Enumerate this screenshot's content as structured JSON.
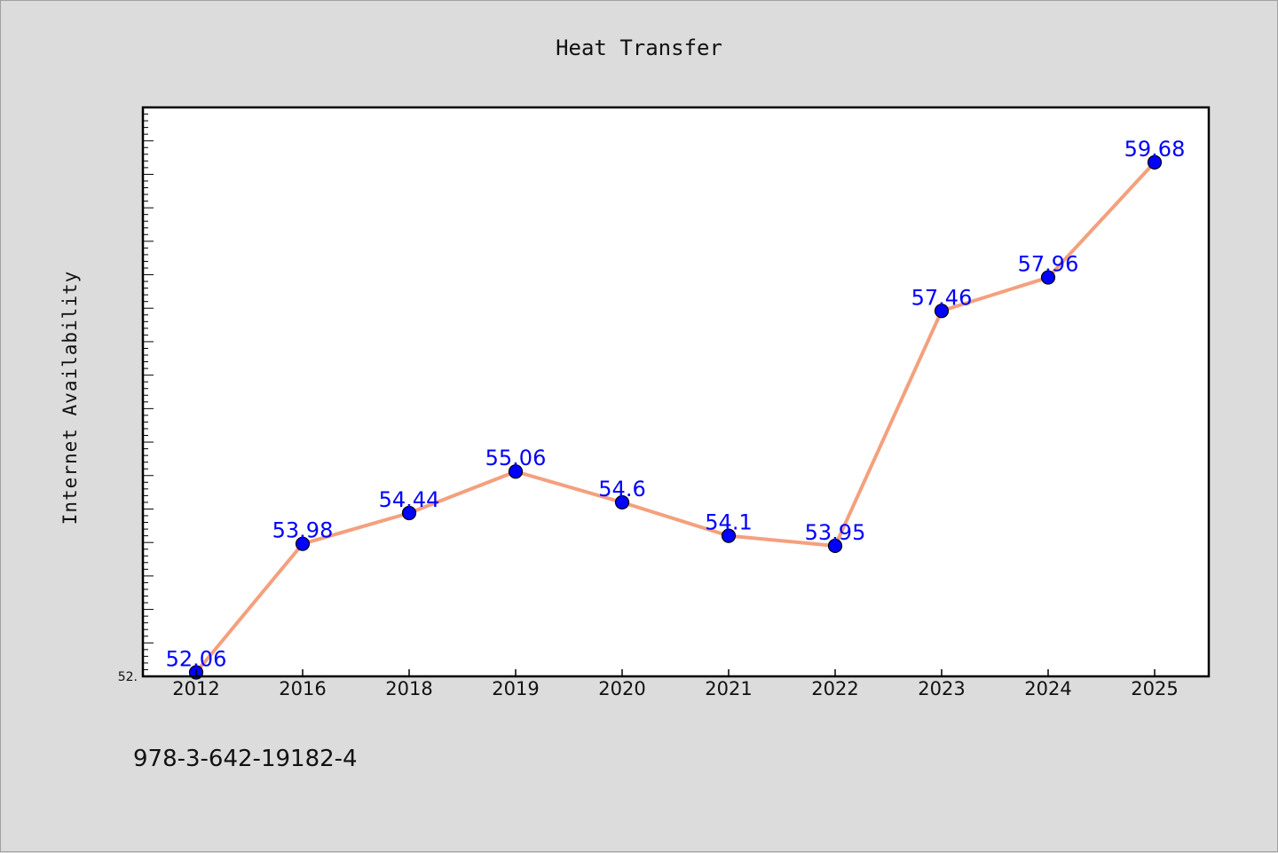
{
  "footer": {
    "code": "978-3-642-19182-4"
  },
  "colors": {
    "background": "#dcdcdc",
    "plot_background": "#ffffff",
    "line": "#f4a07e",
    "marker": "#0000ff",
    "data_label": "#0000ff"
  },
  "chart_data": {
    "type": "line",
    "title": "Heat Transfer",
    "xlabel": "",
    "ylabel": "Internet Availability",
    "categories": [
      "2012",
      "2016",
      "2018",
      "2019",
      "2020",
      "2021",
      "2022",
      "2023",
      "2024",
      "2025"
    ],
    "series": [
      {
        "values": [
          52.06,
          53.98,
          54.44,
          55.06,
          54.6,
          54.1,
          53.95,
          57.46,
          57.96,
          59.68
        ],
        "labels": [
          "52.06",
          "53.98",
          "54.44",
          "55.06",
          "54.6",
          "54.1",
          "53.95",
          "57.46",
          "57.96",
          "59.68"
        ]
      }
    ],
    "ylim": [
      52.0,
      60.5
    ],
    "y_tick_labels": [
      "52."
    ],
    "grid": false,
    "legend": "none"
  }
}
